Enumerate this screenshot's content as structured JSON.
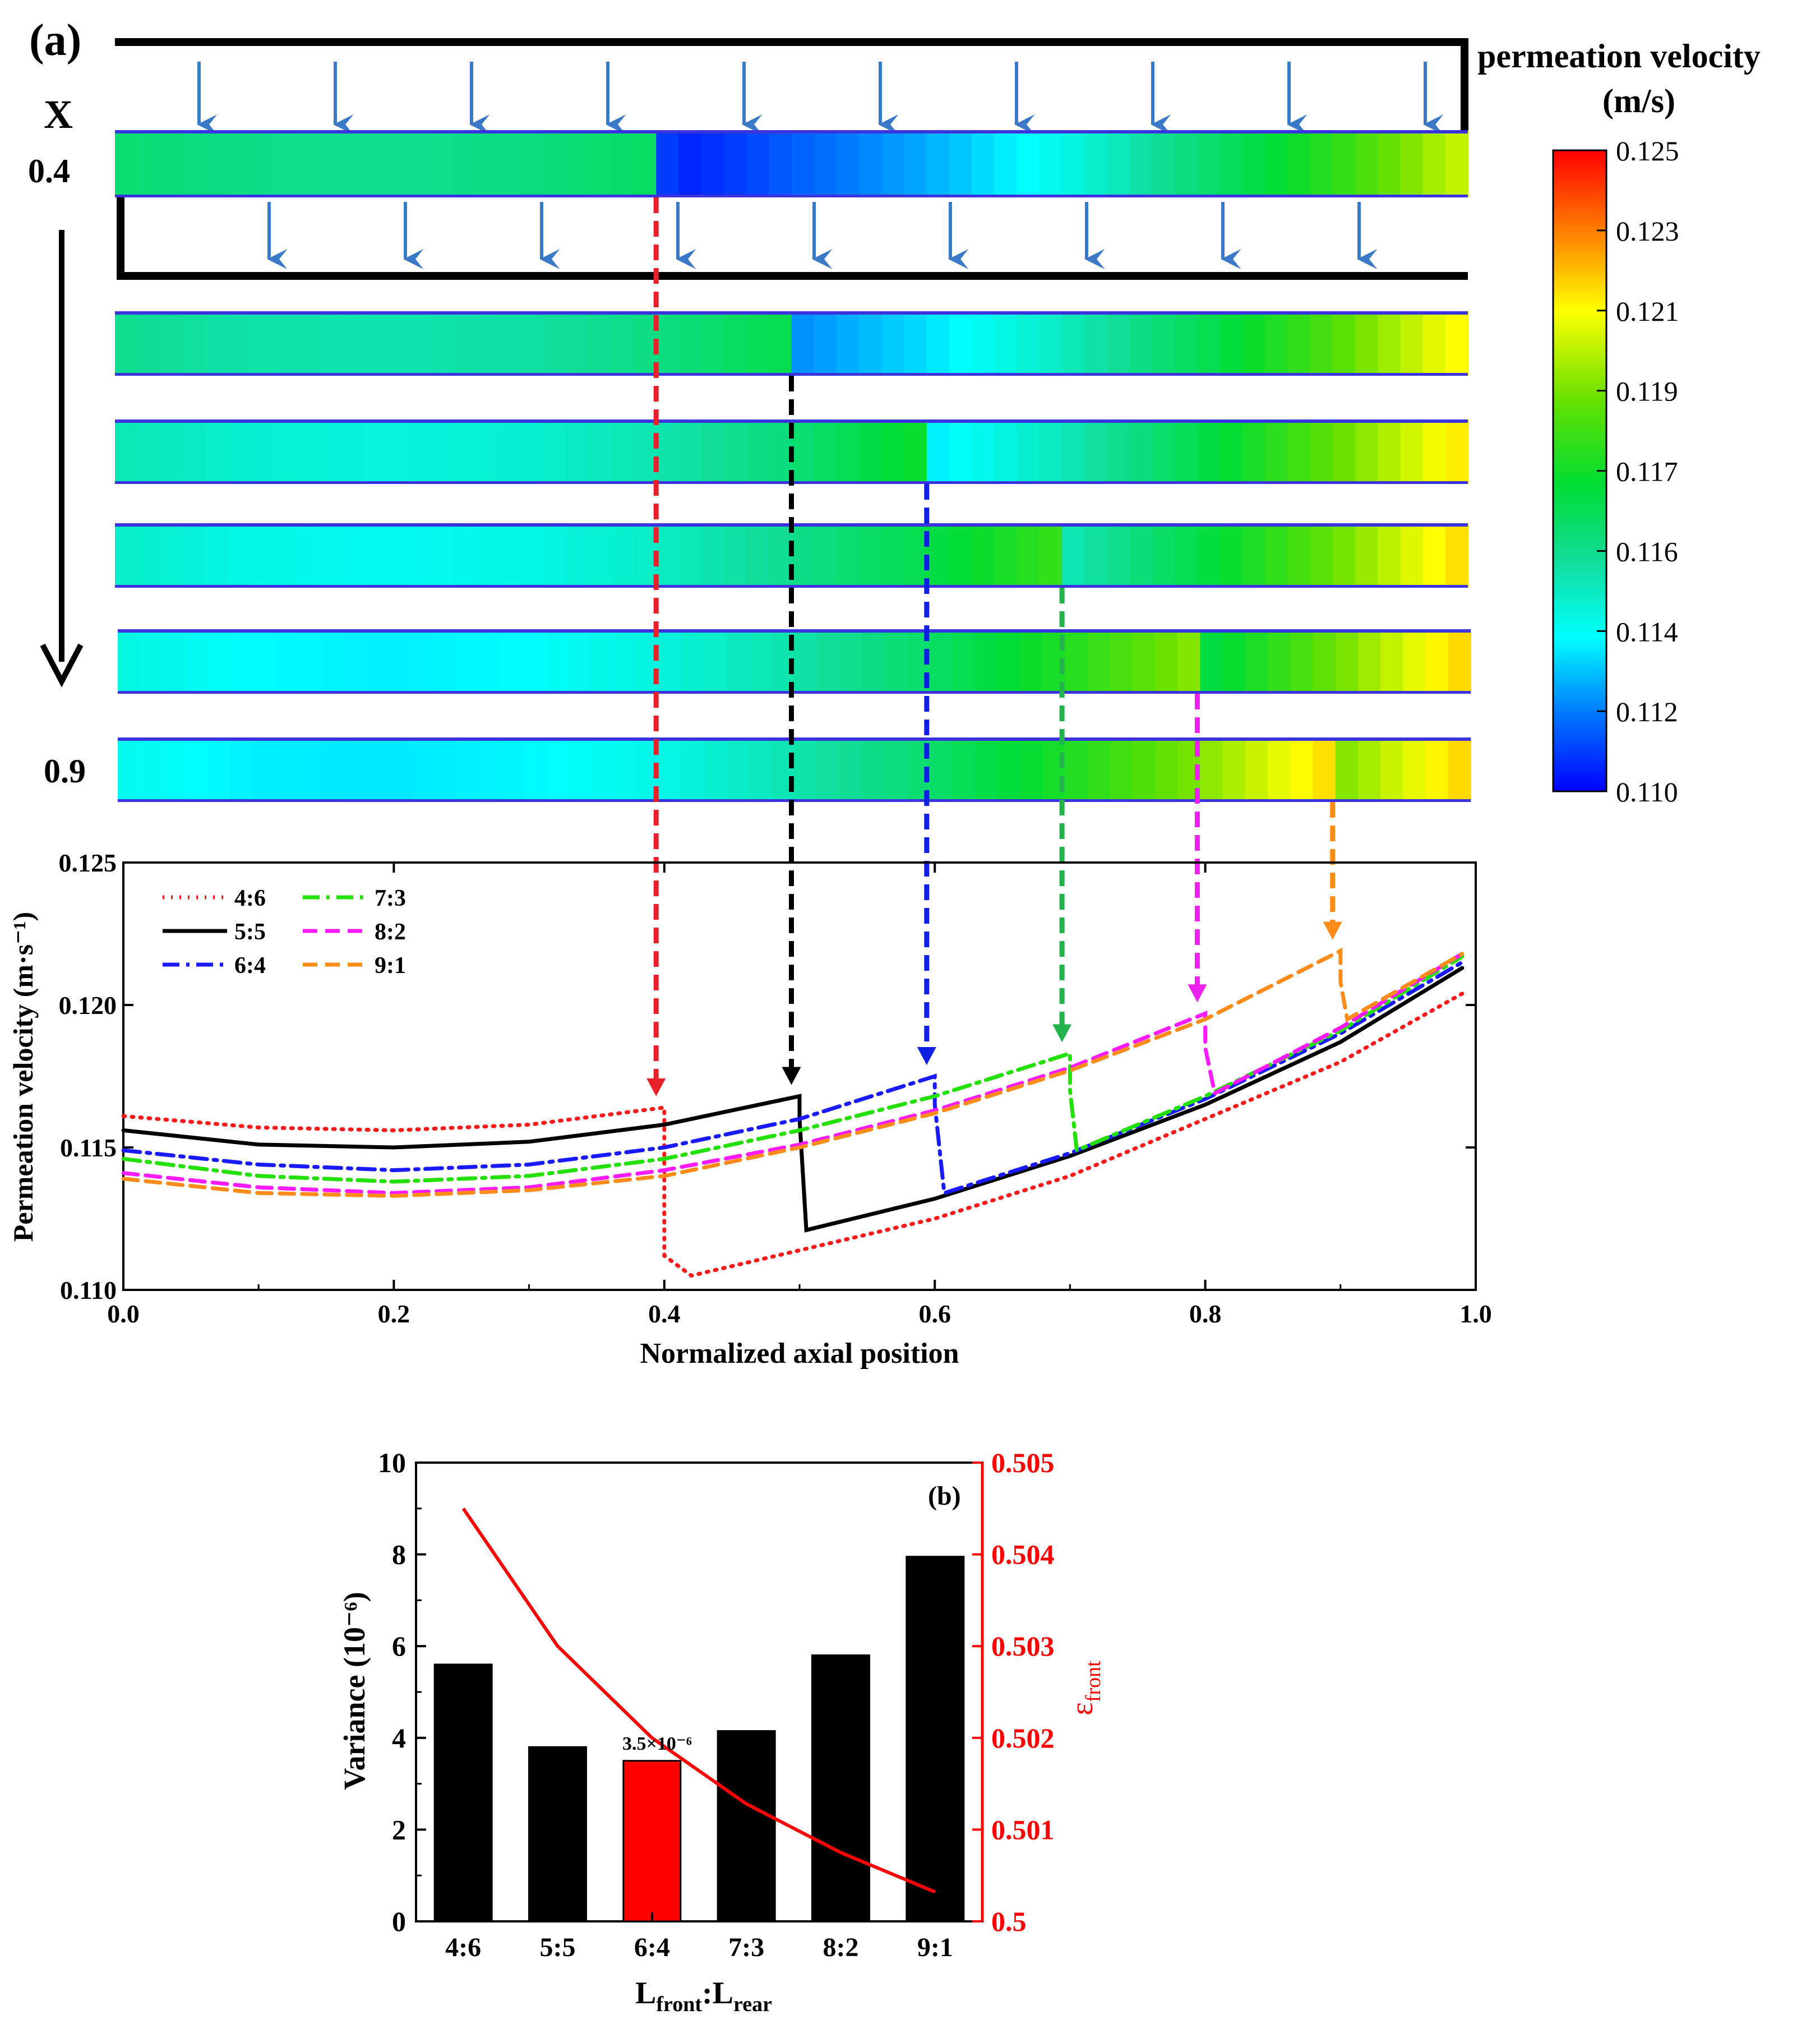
{
  "panel_a": {
    "label": "(a)",
    "x_label": "X",
    "x_start": "0.4",
    "x_end": "0.9",
    "colorbar": {
      "title_line1": "permeation velocity",
      "title_line2": "(m/s)",
      "ticks": [
        "0.125",
        "0.123",
        "0.121",
        "0.119",
        "0.117",
        "0.116",
        "0.114",
        "0.112",
        "0.110"
      ],
      "min": 0.11,
      "max": 0.125
    },
    "strips": [
      {
        "ratio": "4:6",
        "jump_at": 0.4,
        "marker_color": "#e8202a"
      },
      {
        "ratio": "5:5",
        "jump_at": 0.5,
        "marker_color": "#000000"
      },
      {
        "ratio": "6:4",
        "jump_at": 0.6,
        "marker_color": "#1020e0"
      },
      {
        "ratio": "7:3",
        "jump_at": 0.7,
        "marker_color": "#22b34c"
      },
      {
        "ratio": "8:2",
        "jump_at": 0.8,
        "marker_color": "#ee22ee"
      },
      {
        "ratio": "9:1",
        "jump_at": 0.9,
        "marker_color": "#ff8c1a"
      }
    ]
  },
  "chart_data": [
    {
      "type": "line",
      "title": "",
      "xlabel": "Normalized axial position",
      "ylabel": "Permeation velocity (m·s⁻¹)",
      "xlim": [
        0.0,
        1.0
      ],
      "ylim": [
        0.11,
        0.125
      ],
      "x_ticks": [
        "0.0",
        "0.2",
        "0.4",
        "0.6",
        "0.8",
        "1.0"
      ],
      "y_ticks": [
        "0.110",
        "0.115",
        "0.120",
        "0.125"
      ],
      "legend_position": "top-left",
      "series": [
        {
          "name": "4:6",
          "color": "#ff1a1a",
          "dash": "dotted",
          "jump": 0.4,
          "pre": [
            [
              0.0,
              0.1161
            ],
            [
              0.1,
              0.1157
            ],
            [
              0.2,
              0.1156
            ],
            [
              0.3,
              0.1158
            ],
            [
              0.4,
              0.1164
            ]
          ],
          "post": [
            [
              0.4,
              0.1112
            ],
            [
              0.42,
              0.1105
            ],
            [
              0.6,
              0.1125
            ],
            [
              0.7,
              0.114
            ],
            [
              0.8,
              0.116
            ],
            [
              0.9,
              0.118
            ],
            [
              0.99,
              0.1204
            ]
          ]
        },
        {
          "name": "5:5",
          "color": "#000000",
          "dash": "solid",
          "jump": 0.5,
          "pre": [
            [
              0.0,
              0.1156
            ],
            [
              0.1,
              0.1151
            ],
            [
              0.2,
              0.115
            ],
            [
              0.3,
              0.1152
            ],
            [
              0.4,
              0.1158
            ],
            [
              0.5,
              0.1168
            ]
          ],
          "post": [
            [
              0.5,
              0.116
            ],
            [
              0.505,
              0.1121
            ],
            [
              0.6,
              0.1132
            ],
            [
              0.7,
              0.1147
            ],
            [
              0.8,
              0.1165
            ],
            [
              0.9,
              0.1187
            ],
            [
              0.99,
              0.1213
            ]
          ]
        },
        {
          "name": "6:4",
          "color": "#1a1aff",
          "dash": "dashdot",
          "jump": 0.6,
          "pre": [
            [
              0.0,
              0.1149
            ],
            [
              0.1,
              0.1144
            ],
            [
              0.2,
              0.1142
            ],
            [
              0.3,
              0.1144
            ],
            [
              0.4,
              0.115
            ],
            [
              0.5,
              0.116
            ],
            [
              0.6,
              0.1175
            ]
          ],
          "post": [
            [
              0.6,
              0.1165
            ],
            [
              0.607,
              0.1134
            ],
            [
              0.7,
              0.1148
            ],
            [
              0.8,
              0.1167
            ],
            [
              0.9,
              0.119
            ],
            [
              0.99,
              0.1215
            ]
          ]
        },
        {
          "name": "7:3",
          "color": "#22e000",
          "dash": "dashdot",
          "jump": 0.7,
          "pre": [
            [
              0.0,
              0.1146
            ],
            [
              0.1,
              0.114
            ],
            [
              0.2,
              0.1138
            ],
            [
              0.3,
              0.114
            ],
            [
              0.4,
              0.1146
            ],
            [
              0.5,
              0.1156
            ],
            [
              0.6,
              0.1168
            ],
            [
              0.7,
              0.1183
            ]
          ],
          "post": [
            [
              0.7,
              0.117
            ],
            [
              0.705,
              0.1149
            ],
            [
              0.8,
              0.1168
            ],
            [
              0.9,
              0.1191
            ],
            [
              0.99,
              0.1217
            ]
          ]
        },
        {
          "name": "8:2",
          "color": "#ff1aff",
          "dash": "dashed",
          "jump": 0.8,
          "pre": [
            [
              0.0,
              0.1141
            ],
            [
              0.1,
              0.1136
            ],
            [
              0.2,
              0.1134
            ],
            [
              0.3,
              0.1136
            ],
            [
              0.4,
              0.1142
            ],
            [
              0.5,
              0.1151
            ],
            [
              0.6,
              0.1163
            ],
            [
              0.7,
              0.1178
            ],
            [
              0.8,
              0.1197
            ]
          ],
          "post": [
            [
              0.8,
              0.1185
            ],
            [
              0.807,
              0.1169
            ],
            [
              0.9,
              0.1192
            ],
            [
              0.99,
              0.1218
            ]
          ]
        },
        {
          "name": "9:1",
          "color": "#ff8c1a",
          "dash": "dashed",
          "jump": 0.9,
          "pre": [
            [
              0.0,
              0.1139
            ],
            [
              0.1,
              0.1134
            ],
            [
              0.2,
              0.1133
            ],
            [
              0.3,
              0.1135
            ],
            [
              0.4,
              0.114
            ],
            [
              0.5,
              0.115
            ],
            [
              0.6,
              0.1162
            ],
            [
              0.7,
              0.1177
            ],
            [
              0.8,
              0.1195
            ],
            [
              0.9,
              0.1219
            ]
          ],
          "post": [
            [
              0.9,
              0.1208
            ],
            [
              0.905,
              0.1195
            ],
            [
              0.99,
              0.1218
            ]
          ]
        }
      ]
    },
    {
      "type": "bar",
      "label": "(b)",
      "xlabel_main": "L",
      "xlabel_sub1": "front",
      "xlabel_sep": ":L",
      "xlabel_sub2": "rear",
      "ylabel": "Variance (10⁻⁶)",
      "y2label_main": "ε",
      "y2label_sub": "front",
      "categories": [
        "4:6",
        "5:5",
        "6:4",
        "7:3",
        "8:2",
        "9:1"
      ],
      "values": [
        5.6,
        3.8,
        3.5,
        4.15,
        5.8,
        7.95
      ],
      "bar_colors": [
        "#000000",
        "#000000",
        "#ff0000",
        "#000000",
        "#000000",
        "#000000"
      ],
      "ylim": [
        0,
        10
      ],
      "y_ticks": [
        "0",
        "2",
        "4",
        "6",
        "8",
        "10"
      ],
      "annotation": "3.5×10⁻⁶",
      "line_series": {
        "name": "ε_front",
        "color": "#ff0000",
        "values": [
          0.5045,
          0.503,
          0.502,
          0.50128,
          0.50075,
          0.50032
        ]
      },
      "y2lim": [
        0.5,
        0.505
      ],
      "y2_ticks": [
        "0.505",
        "0.504",
        "0.503",
        "0.502",
        "0.501",
        "0.5"
      ]
    }
  ]
}
